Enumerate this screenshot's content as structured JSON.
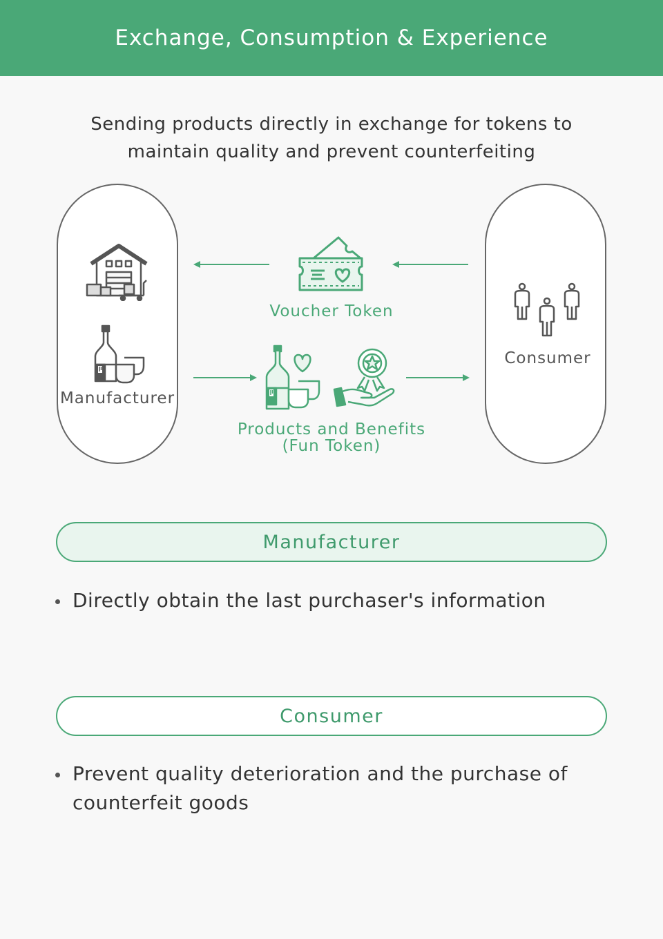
{
  "header": {
    "title": "Exchange, Consumption & Experience"
  },
  "intro": {
    "text": "Sending products directly in exchange for tokens to maintain quality and prevent counterfeiting"
  },
  "diagram": {
    "left_node": {
      "label": "Manufacturer"
    },
    "right_node": {
      "label": "Consumer"
    },
    "top_flow": {
      "label": "Voucher Token",
      "direction": "consumer-to-manufacturer"
    },
    "bottom_flow": {
      "label_line1": "Products and Benefits",
      "label_line2": "(Fun Token)",
      "direction": "manufacturer-to-consumer"
    },
    "icons": [
      "warehouse-icon",
      "bottle-cups-icon",
      "voucher-ticket-icon",
      "people-icon",
      "bottle-heart-icon",
      "hand-badge-icon"
    ]
  },
  "sections": [
    {
      "title": "Manufacturer",
      "bullets": [
        "Directly obtain the last purchaser's information"
      ]
    },
    {
      "title": "Consumer",
      "bullets": [
        "Prevent quality deterioration and the purchase of counterfeit goods"
      ]
    }
  ],
  "colors": {
    "accent": "#4aa877",
    "accent_light": "#e9f5ee",
    "text": "#333333",
    "icon_gray": "#555555"
  }
}
